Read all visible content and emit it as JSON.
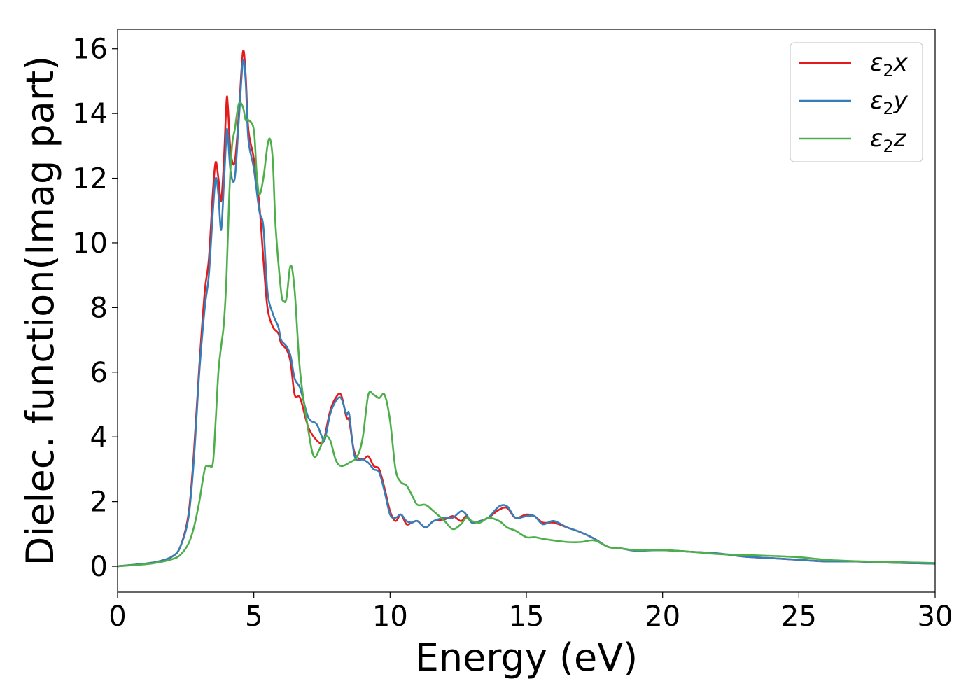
{
  "chart_data": {
    "type": "line",
    "xlabel": "Energy (eV)",
    "ylabel": "Dielec. function(Imag part)",
    "xlim": [
      0,
      30
    ],
    "ylim": [
      -0.8,
      16.6
    ],
    "xticks": [
      0,
      5,
      10,
      15,
      20,
      25,
      30
    ],
    "yticks": [
      0,
      2,
      4,
      6,
      8,
      10,
      12,
      14,
      16
    ],
    "grid": false,
    "legend_position": "top-right",
    "series": [
      {
        "name": "ε2x",
        "legend": {
          "symbol": "ε",
          "sub": "2",
          "axis": "x"
        },
        "color": "#e41a1c",
        "x": [
          0,
          1,
          1.5,
          2,
          2.3,
          2.6,
          2.8,
          3.0,
          3.2,
          3.35,
          3.5,
          3.6,
          3.7,
          3.8,
          3.9,
          4.0,
          4.05,
          4.15,
          4.3,
          4.45,
          4.6,
          4.7,
          4.8,
          5.0,
          5.2,
          5.35,
          5.5,
          5.7,
          5.9,
          6.0,
          6.2,
          6.35,
          6.5,
          6.7,
          7.0,
          7.3,
          7.5,
          7.6,
          7.8,
          8.0,
          8.2,
          8.4,
          8.5,
          8.7,
          9.0,
          9.2,
          9.4,
          9.6,
          9.8,
          10.0,
          10.2,
          10.4,
          10.6,
          10.8,
          11.0,
          11.3,
          11.6,
          12.0,
          12.3,
          12.6,
          12.8,
          13.0,
          13.3,
          13.6,
          14.0,
          14.3,
          14.6,
          15.0,
          15.3,
          15.6,
          16.0,
          16.5,
          17.0,
          17.5,
          18.0,
          18.5,
          19.0,
          20.0,
          21.0,
          22.0,
          23.0,
          24.0,
          25.0,
          26.0,
          27.0,
          28.0,
          29.0,
          30.0
        ],
        "y": [
          0,
          0.08,
          0.15,
          0.3,
          0.6,
          1.6,
          3.5,
          6.2,
          8.5,
          9.5,
          11.6,
          12.5,
          12.0,
          11.3,
          12.5,
          14.4,
          14.2,
          12.8,
          12.5,
          14.0,
          15.9,
          15.2,
          13.5,
          12.6,
          11.2,
          9.5,
          8.0,
          7.4,
          7.2,
          6.9,
          6.7,
          6.3,
          5.3,
          5.2,
          4.3,
          3.9,
          3.8,
          4.0,
          4.8,
          5.2,
          5.3,
          4.6,
          4.5,
          3.5,
          3.3,
          3.4,
          3.1,
          3.0,
          2.4,
          1.7,
          1.4,
          1.6,
          1.3,
          1.35,
          1.4,
          1.2,
          1.4,
          1.45,
          1.55,
          1.4,
          1.55,
          1.35,
          1.4,
          1.5,
          1.75,
          1.8,
          1.5,
          1.6,
          1.55,
          1.35,
          1.35,
          1.2,
          1.05,
          0.85,
          0.6,
          0.55,
          0.5,
          0.5,
          0.45,
          0.4,
          0.3,
          0.25,
          0.2,
          0.15,
          0.15,
          0.12,
          0.1,
          0.08
        ]
      },
      {
        "name": "ε2y",
        "legend": {
          "symbol": "ε",
          "sub": "2",
          "axis": "y"
        },
        "color": "#377eb8",
        "x": [
          0,
          1,
          1.5,
          2,
          2.3,
          2.6,
          2.8,
          3.0,
          3.2,
          3.35,
          3.5,
          3.6,
          3.7,
          3.8,
          3.9,
          4.0,
          4.05,
          4.15,
          4.3,
          4.45,
          4.6,
          4.7,
          4.8,
          5.0,
          5.2,
          5.35,
          5.5,
          5.7,
          5.9,
          6.0,
          6.2,
          6.35,
          6.5,
          6.7,
          7.0,
          7.3,
          7.5,
          7.6,
          7.8,
          8.0,
          8.2,
          8.4,
          8.5,
          8.7,
          9.0,
          9.2,
          9.4,
          9.6,
          9.8,
          10.0,
          10.2,
          10.4,
          10.6,
          10.8,
          11.0,
          11.3,
          11.6,
          12.0,
          12.3,
          12.6,
          12.8,
          13.0,
          13.3,
          13.6,
          14.0,
          14.3,
          14.6,
          15.0,
          15.3,
          15.6,
          16.0,
          16.5,
          17.0,
          17.5,
          18.0,
          18.5,
          19.0,
          20.0,
          21.0,
          22.0,
          23.0,
          24.0,
          25.0,
          26.0,
          27.0,
          28.0,
          29.0,
          30.0
        ],
        "y": [
          0,
          0.08,
          0.15,
          0.3,
          0.6,
          1.5,
          3.3,
          6.0,
          8.0,
          9.0,
          11.0,
          12.0,
          11.5,
          10.4,
          11.8,
          13.4,
          13.3,
          12.2,
          12.0,
          13.8,
          15.6,
          15.0,
          13.2,
          12.3,
          11.0,
          10.5,
          8.5,
          7.8,
          7.4,
          7.0,
          6.8,
          6.5,
          5.8,
          5.5,
          4.6,
          4.4,
          4.0,
          3.9,
          4.7,
          5.1,
          5.2,
          4.7,
          4.7,
          3.4,
          3.3,
          3.2,
          3.0,
          2.9,
          2.3,
          1.6,
          1.5,
          1.6,
          1.4,
          1.35,
          1.4,
          1.2,
          1.4,
          1.5,
          1.5,
          1.7,
          1.6,
          1.35,
          1.4,
          1.5,
          1.85,
          1.85,
          1.5,
          1.55,
          1.55,
          1.3,
          1.4,
          1.2,
          1.05,
          0.85,
          0.6,
          0.55,
          0.48,
          0.5,
          0.45,
          0.4,
          0.3,
          0.25,
          0.2,
          0.15,
          0.15,
          0.12,
          0.1,
          0.08
        ]
      },
      {
        "name": "ε2z",
        "legend": {
          "symbol": "ε",
          "sub": "2",
          "axis": "z"
        },
        "color": "#4daf4a",
        "x": [
          0,
          1,
          1.5,
          2,
          2.3,
          2.6,
          2.8,
          3.0,
          3.2,
          3.35,
          3.5,
          3.6,
          3.7,
          3.8,
          3.9,
          4.0,
          4.1,
          4.2,
          4.3,
          4.45,
          4.6,
          4.7,
          4.8,
          5.0,
          5.1,
          5.2,
          5.35,
          5.5,
          5.6,
          5.7,
          5.8,
          6.0,
          6.1,
          6.2,
          6.35,
          6.5,
          6.7,
          7.0,
          7.2,
          7.4,
          7.6,
          7.8,
          8.0,
          8.2,
          8.5,
          8.8,
          9.0,
          9.2,
          9.4,
          9.6,
          9.8,
          10.0,
          10.2,
          10.4,
          10.6,
          10.8,
          11.0,
          11.3,
          11.6,
          12.0,
          12.3,
          12.6,
          12.8,
          13.0,
          13.3,
          13.6,
          14.0,
          14.3,
          14.6,
          15.0,
          15.3,
          15.6,
          16.0,
          16.5,
          17.0,
          17.5,
          18.0,
          18.5,
          19.0,
          20.0,
          21.0,
          22.0,
          23.0,
          24.0,
          25.0,
          26.0,
          27.0,
          28.0,
          29.0,
          30.0
        ],
        "y": [
          0,
          0.06,
          0.12,
          0.22,
          0.35,
          0.7,
          1.2,
          2.0,
          3.0,
          3.1,
          3.2,
          4.5,
          6.0,
          6.8,
          7.5,
          9.0,
          11.5,
          13.0,
          13.5,
          14.3,
          14.2,
          13.8,
          13.8,
          13.5,
          12.2,
          11.5,
          12.0,
          13.0,
          13.2,
          12.5,
          10.5,
          8.5,
          8.2,
          8.3,
          9.3,
          8.5,
          6.0,
          4.2,
          3.4,
          3.6,
          4.0,
          3.9,
          3.3,
          3.1,
          3.2,
          3.4,
          4.0,
          5.3,
          5.3,
          5.2,
          5.3,
          4.5,
          3.0,
          2.6,
          2.5,
          2.2,
          1.9,
          1.9,
          1.7,
          1.4,
          1.15,
          1.3,
          1.5,
          1.4,
          1.35,
          1.5,
          1.4,
          1.2,
          1.1,
          0.9,
          0.9,
          0.85,
          0.8,
          0.75,
          0.75,
          0.8,
          0.6,
          0.55,
          0.5,
          0.5,
          0.45,
          0.38,
          0.35,
          0.32,
          0.28,
          0.2,
          0.16,
          0.14,
          0.12,
          0.1
        ]
      }
    ]
  }
}
